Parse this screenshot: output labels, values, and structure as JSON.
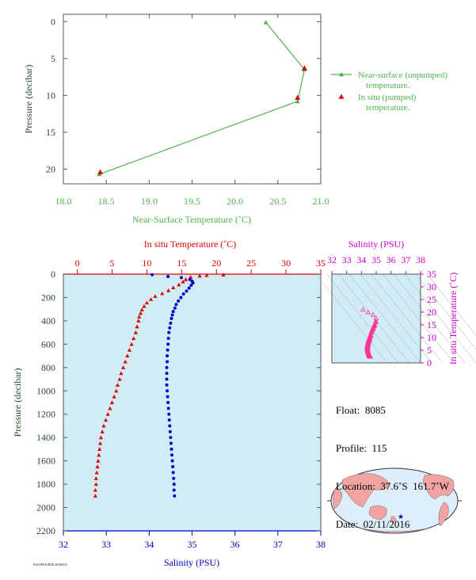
{
  "chart_data": [
    {
      "type": "line",
      "xlabel": "Near-Surface Temperature (˚C)",
      "ylabel": "Pressure (decibar)",
      "xlim": [
        18.0,
        21.0
      ],
      "ylim": [
        22,
        -1
      ],
      "x_ticks": [
        "18.0",
        "18.5",
        "19.0",
        "19.5",
        "20.0",
        "20.5",
        "21.0"
      ],
      "y_ticks": [
        "0",
        "5",
        "10",
        "15",
        "20"
      ],
      "legend_position": "right",
      "series": [
        {
          "name": "Near-surface (unpumped) temperature.",
          "marker": "triangle",
          "color": "#4db34d",
          "points": [
            [
              20.36,
              0.1
            ],
            [
              20.81,
              6.5
            ],
            [
              20.73,
              10.8
            ],
            [
              18.42,
              20.7
            ]
          ]
        },
        {
          "name": "In situ (pumped) temperature.",
          "marker": "triangle",
          "color": "#dd0000",
          "points": [
            [
              20.81,
              6.3
            ],
            [
              20.73,
              10.3
            ],
            [
              18.43,
              20.4
            ]
          ]
        }
      ]
    },
    {
      "type": "scatter",
      "ylabel": "Pressure (decibar)",
      "ylim": [
        2200,
        0
      ],
      "y_ticks": [
        "0",
        "200",
        "400",
        "600",
        "800",
        "1000",
        "1200",
        "1400",
        "1600",
        "1800",
        "2000",
        "2200"
      ],
      "top_axis": {
        "label": "In situ Temperature (˚C)",
        "range": [
          -2,
          35
        ],
        "ticks": [
          "0",
          "5",
          "10",
          "15",
          "20",
          "25",
          "30",
          "35"
        ]
      },
      "bottom_axis": {
        "label": "Salinity (PSU)",
        "range": [
          32,
          38
        ],
        "ticks": [
          "32",
          "33",
          "34",
          "35",
          "36",
          "37",
          "38"
        ]
      },
      "series": [
        {
          "axis": "temperature",
          "marker": "triangle",
          "color": "#dd0000",
          "points": [
            [
              21.0,
              5
            ],
            [
              18.6,
              10
            ],
            [
              17.6,
              15
            ],
            [
              16.3,
              25
            ],
            [
              15.6,
              45
            ],
            [
              15.2,
              65
            ],
            [
              14.6,
              90
            ],
            [
              13.8,
              115
            ],
            [
              13.1,
              140
            ],
            [
              12.2,
              165
            ],
            [
              11.2,
              190
            ],
            [
              10.6,
              215
            ],
            [
              10.0,
              245
            ],
            [
              9.6,
              275
            ],
            [
              9.3,
              305
            ],
            [
              9.1,
              335
            ],
            [
              8.9,
              365
            ],
            [
              8.8,
              400
            ],
            [
              8.6,
              450
            ],
            [
              8.4,
              500
            ],
            [
              8.1,
              550
            ],
            [
              7.8,
              600
            ],
            [
              7.5,
              650
            ],
            [
              7.2,
              700
            ],
            [
              6.9,
              750
            ],
            [
              6.6,
              800
            ],
            [
              6.3,
              850
            ],
            [
              6.1,
              900
            ],
            [
              5.8,
              950
            ],
            [
              5.6,
              1000
            ],
            [
              5.3,
              1050
            ],
            [
              5.0,
              1100
            ],
            [
              4.7,
              1150
            ],
            [
              4.4,
              1200
            ],
            [
              4.1,
              1250
            ],
            [
              3.8,
              1300
            ],
            [
              3.6,
              1350
            ],
            [
              3.4,
              1400
            ],
            [
              3.3,
              1450
            ],
            [
              3.2,
              1500
            ],
            [
              3.1,
              1550
            ],
            [
              3.0,
              1600
            ],
            [
              2.9,
              1650
            ],
            [
              2.8,
              1700
            ],
            [
              2.7,
              1750
            ],
            [
              2.7,
              1800
            ],
            [
              2.6,
              1850
            ],
            [
              2.6,
              1900
            ]
          ]
        },
        {
          "axis": "salinity",
          "marker": "dot",
          "color": "#0000cc",
          "points": [
            [
              34.07,
              5
            ],
            [
              34.44,
              20
            ],
            [
              34.75,
              30
            ],
            [
              34.95,
              45
            ],
            [
              35.0,
              60
            ],
            [
              35.02,
              75
            ],
            [
              34.98,
              95
            ],
            [
              34.93,
              120
            ],
            [
              34.87,
              145
            ],
            [
              34.8,
              170
            ],
            [
              34.74,
              200
            ],
            [
              34.68,
              230
            ],
            [
              34.63,
              260
            ],
            [
              34.6,
              290
            ],
            [
              34.56,
              320
            ],
            [
              34.54,
              350
            ],
            [
              34.52,
              380
            ],
            [
              34.5,
              420
            ],
            [
              34.48,
              460
            ],
            [
              34.46,
              500
            ],
            [
              34.45,
              550
            ],
            [
              34.44,
              600
            ],
            [
              34.43,
              650
            ],
            [
              34.42,
              700
            ],
            [
              34.42,
              750
            ],
            [
              34.41,
              800
            ],
            [
              34.41,
              850
            ],
            [
              34.41,
              900
            ],
            [
              34.41,
              950
            ],
            [
              34.42,
              1000
            ],
            [
              34.43,
              1050
            ],
            [
              34.44,
              1100
            ],
            [
              34.45,
              1150
            ],
            [
              34.46,
              1200
            ],
            [
              34.47,
              1250
            ],
            [
              34.48,
              1300
            ],
            [
              34.49,
              1350
            ],
            [
              34.5,
              1400
            ],
            [
              34.51,
              1450
            ],
            [
              34.52,
              1500
            ],
            [
              34.53,
              1550
            ],
            [
              34.54,
              1600
            ],
            [
              34.55,
              1650
            ],
            [
              34.56,
              1700
            ],
            [
              34.57,
              1750
            ],
            [
              34.58,
              1800
            ],
            [
              34.58,
              1850
            ],
            [
              34.59,
              1900
            ]
          ]
        }
      ]
    },
    {
      "type": "scatter",
      "xlabel": "Salinity (PSU)",
      "ylabel": "In situ Temperature (˚C)",
      "xlim": [
        32,
        38
      ],
      "ylim": [
        0,
        35
      ],
      "x_ticks": [
        "32",
        "33",
        "34",
        "35",
        "36",
        "37",
        "38"
      ],
      "y_ticks": [
        "0",
        "5",
        "10",
        "15",
        "20",
        "25",
        "30",
        "35"
      ],
      "series": [
        {
          "marker": "triangle",
          "color": "#ff3399",
          "points": [
            [
              34.1,
              21.0
            ],
            [
              34.45,
              20.0
            ],
            [
              34.8,
              19.0
            ],
            [
              35.0,
              17.6
            ],
            [
              34.98,
              16.3
            ],
            [
              34.9,
              15.2
            ],
            [
              34.85,
              14.6
            ],
            [
              34.8,
              13.8
            ],
            [
              34.74,
              13.1
            ],
            [
              34.68,
              12.2
            ],
            [
              34.63,
              11.2
            ],
            [
              34.6,
              10.6
            ],
            [
              34.56,
              10.0
            ],
            [
              34.54,
              9.6
            ],
            [
              34.52,
              9.3
            ],
            [
              34.5,
              9.0
            ],
            [
              34.48,
              8.7
            ],
            [
              34.46,
              8.4
            ],
            [
              34.45,
              8.0
            ],
            [
              34.44,
              7.6
            ],
            [
              34.43,
              7.2
            ],
            [
              34.42,
              6.8
            ],
            [
              34.41,
              6.4
            ],
            [
              34.41,
              6.0
            ],
            [
              34.41,
              5.6
            ],
            [
              34.42,
              5.2
            ],
            [
              34.43,
              4.8
            ],
            [
              34.45,
              4.4
            ],
            [
              34.47,
              4.0
            ],
            [
              34.49,
              3.6
            ],
            [
              34.51,
              3.3
            ],
            [
              34.53,
              3.1
            ],
            [
              34.55,
              2.9
            ],
            [
              34.57,
              2.7
            ],
            [
              34.59,
              2.6
            ]
          ]
        }
      ]
    }
  ],
  "info": {
    "float": "Float:  8085",
    "profile": "Profile:  115",
    "location": "Location:  37.6˚S  161.7˚W",
    "date": "Date:  02/11/2016"
  },
  "footer_text": "FSI/APEX/RTD 20160211",
  "colors": {
    "near_surface": "#4db34d",
    "insitu": "#dd0000",
    "salinity": "#0000cc",
    "ts_points": "#ff3399",
    "panel_bg": "#d2ecf6",
    "magenta": "#cc00cc",
    "axis_text": "#2a4a2a",
    "land": "#f4a3a3",
    "ocean": "#ddeefa"
  }
}
